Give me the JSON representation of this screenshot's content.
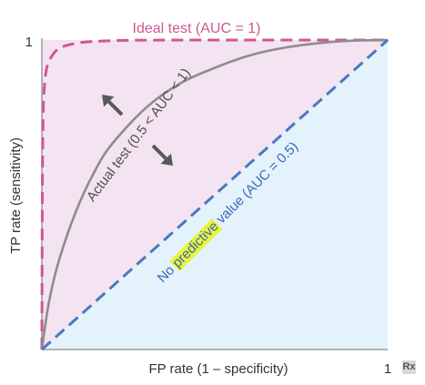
{
  "chart_data": {
    "type": "line",
    "title": "",
    "xlabel": "FP rate (1 – specificity)",
    "ylabel": "TP rate (sensitivity)",
    "xlim": [
      0,
      1
    ],
    "ylim": [
      0,
      1
    ],
    "x_tick_labels": [
      "1"
    ],
    "y_tick_labels": [
      "1"
    ],
    "grid": false,
    "series": [
      {
        "name": "Ideal test (AUC = 1)",
        "style": "dashed",
        "color": "#d0578f",
        "points": [
          [
            0,
            0
          ],
          [
            0.002,
            0.6
          ],
          [
            0.008,
            0.86
          ],
          [
            0.03,
            0.95
          ],
          [
            0.08,
            0.985
          ],
          [
            0.2,
            0.998
          ],
          [
            0.5,
            1.0
          ],
          [
            1,
            1
          ]
        ]
      },
      {
        "name": "Actual test (0.5 < AUC < 1)",
        "style": "solid",
        "color": "#8d8d8d",
        "points": [
          [
            0,
            0
          ],
          [
            0.02,
            0.15
          ],
          [
            0.05,
            0.29
          ],
          [
            0.1,
            0.45
          ],
          [
            0.15,
            0.57
          ],
          [
            0.2,
            0.66
          ],
          [
            0.3,
            0.78
          ],
          [
            0.4,
            0.86
          ],
          [
            0.5,
            0.91
          ],
          [
            0.6,
            0.95
          ],
          [
            0.7,
            0.975
          ],
          [
            0.8,
            0.99
          ],
          [
            0.9,
            0.998
          ],
          [
            1,
            1
          ]
        ]
      },
      {
        "name": "No predictive value (AUC = 0.5)",
        "style": "dashed",
        "color": "#4a78c2",
        "points": [
          [
            0,
            0
          ],
          [
            1,
            1
          ]
        ]
      }
    ],
    "annotations": {
      "actual_prefix": "Actual test (0.5 < AUC < 1)",
      "no_pred_prefix": "No ",
      "no_pred_highlight": "predictive",
      "no_pred_suffix": " value (AUC = 0.5)"
    },
    "colors": {
      "upper_fill": "#f4e3f0",
      "lower_fill": "#e4f3fb",
      "axis": "#9a9a9a",
      "arrow": "#595959",
      "highlight": "#e8f53a",
      "label_text": "#333333"
    }
  },
  "badge": "Rx"
}
